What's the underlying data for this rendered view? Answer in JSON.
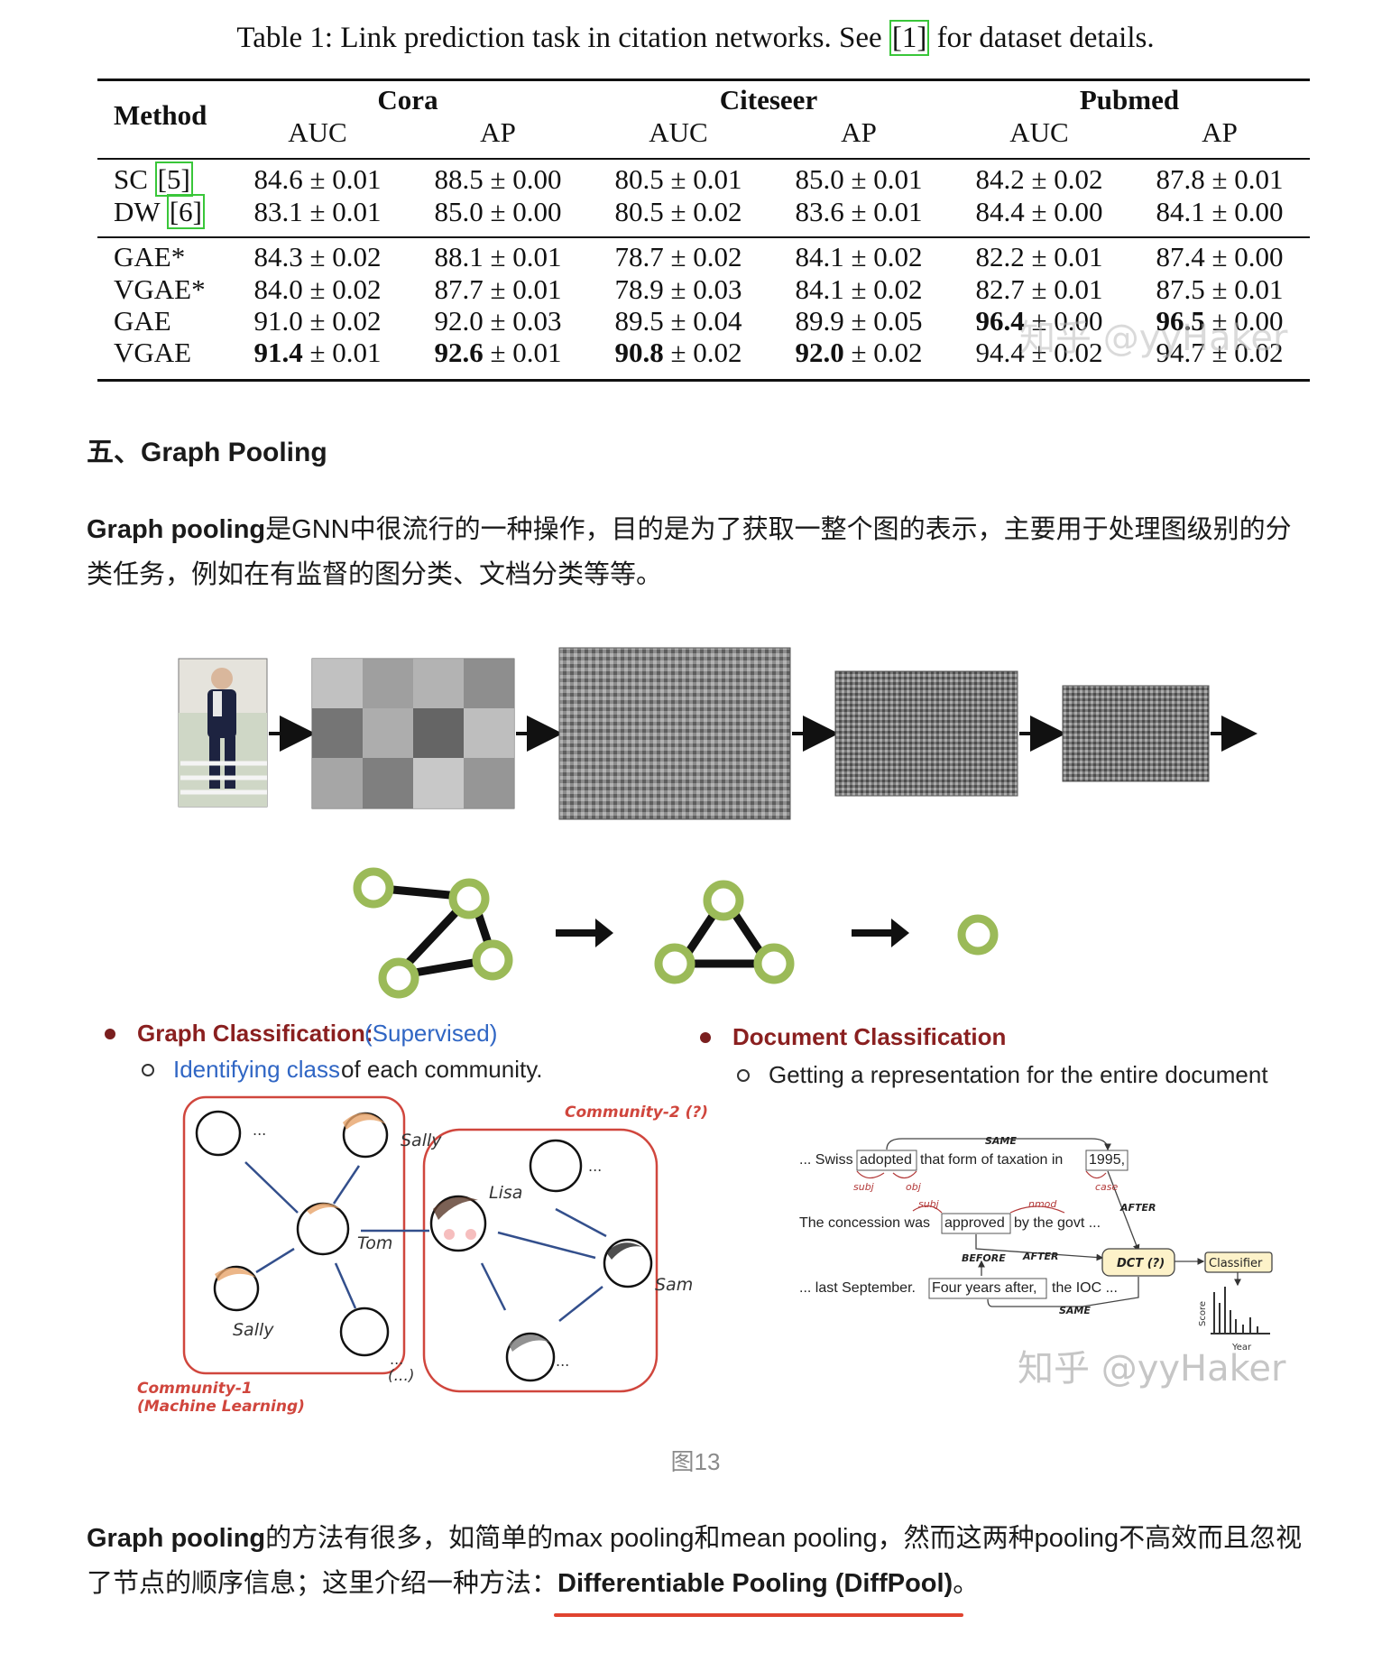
{
  "table": {
    "caption_prefix": "Table 1: Link prediction task in citation networks. See ",
    "caption_cite": "[1]",
    "caption_suffix": " for dataset details.",
    "method_header": "Method",
    "datasets": [
      "Cora",
      "Citeseer",
      "Pubmed"
    ],
    "metrics": [
      "AUC",
      "AP",
      "AUC",
      "AP",
      "AUC",
      "AP"
    ],
    "group1": [
      {
        "method": "SC",
        "cite": "[5]",
        "values": [
          "84.6 ± 0.01",
          "88.5 ± 0.00",
          "80.5 ± 0.01",
          "85.0 ± 0.01",
          "84.2 ± 0.02",
          "87.8 ± 0.01"
        ]
      },
      {
        "method": "DW",
        "cite": "[6]",
        "values": [
          "83.1 ± 0.01",
          "85.0 ± 0.00",
          "80.5 ± 0.02",
          "83.6 ± 0.01",
          "84.4 ± 0.00",
          "84.1 ± 0.00"
        ]
      }
    ],
    "group2": [
      {
        "method": "GAE*",
        "values": [
          "84.3 ± 0.02",
          "88.1 ± 0.01",
          "78.7 ± 0.02",
          "84.1 ± 0.02",
          "82.2 ± 0.01",
          "87.4 ± 0.00"
        ]
      },
      {
        "method": "VGAE*",
        "values": [
          "84.0 ± 0.02",
          "87.7 ± 0.01",
          "78.9 ± 0.03",
          "84.1 ± 0.02",
          "82.7 ± 0.01",
          "87.5 ± 0.01"
        ]
      },
      {
        "method": "GAE",
        "values": [
          "91.0 ± 0.02",
          "92.0 ± 0.03",
          "89.5 ± 0.04",
          "89.9 ± 0.05",
          "96.4 ± 0.00",
          "96.5 ± 0.00"
        ]
      },
      {
        "method": "VGAE",
        "values": [
          "91.4 ± 0.01",
          "92.6 ± 0.01",
          "90.8 ± 0.02",
          "92.0 ± 0.02",
          "94.4 ± 0.02",
          "94.7 ± 0.02"
        ]
      }
    ]
  },
  "watermark": "知乎 @yyHaker",
  "section_title": "五、Graph Pooling",
  "para1": {
    "bold": "Graph pooling",
    "text": "是GNN中很流行的一种操作，目的是为了获取一整个图的表示，主要用于处理图级别的分类任务，例如在有监督的图分类、文档分类等等。"
  },
  "figure": {
    "graph_class_title": "Graph Classification:",
    "graph_class_sup": "(Supervised)",
    "graph_class_sub_blue": "Identifying class",
    "graph_class_sub_rest": " of each community.",
    "doc_class_title": "Document Classification",
    "doc_class_sub": "Getting a representation for the entire document",
    "community1": "Community-1",
    "community1_sub": "(Machine Learning)",
    "community2": "Community-2 (?)",
    "names": {
      "sally_top": "Sally",
      "tom": "Tom",
      "sally": "Sally",
      "lisa": "Lisa",
      "sam": "Sam"
    },
    "ellipsis": "...",
    "paren_ellipsis": "(...)",
    "doc_line1_a": "... Swiss",
    "doc_line1_b": "adopted",
    "doc_line1_c": "that form of taxation in",
    "doc_line1_d": "1995,",
    "doc_line2_a": "The concession was",
    "doc_line2_b": "approved",
    "doc_line2_c": "by the govt ...",
    "doc_line3_a": "... last September.",
    "doc_line3_b": "Four years after,",
    "doc_line3_c": "the IOC ...",
    "tags": {
      "same": "SAME",
      "subj": "subj",
      "obj": "obj",
      "case": "case",
      "nmod": "nmod",
      "after": "AFTER",
      "before": "BEFORE",
      "dct": "DCT (?)",
      "classifier": "Classifier",
      "score": "Score",
      "year": "Year"
    },
    "caption": "图13"
  },
  "para2": {
    "bold": "Graph pooling",
    "text": "的方法有很多，如简单的max pooling和mean pooling，然而这两种pooling不高效而且忽视了节点的顺序信息；这里介绍一种方法：",
    "highlight": "Differentiable Pooling (DiffPool)",
    "end": "。"
  }
}
